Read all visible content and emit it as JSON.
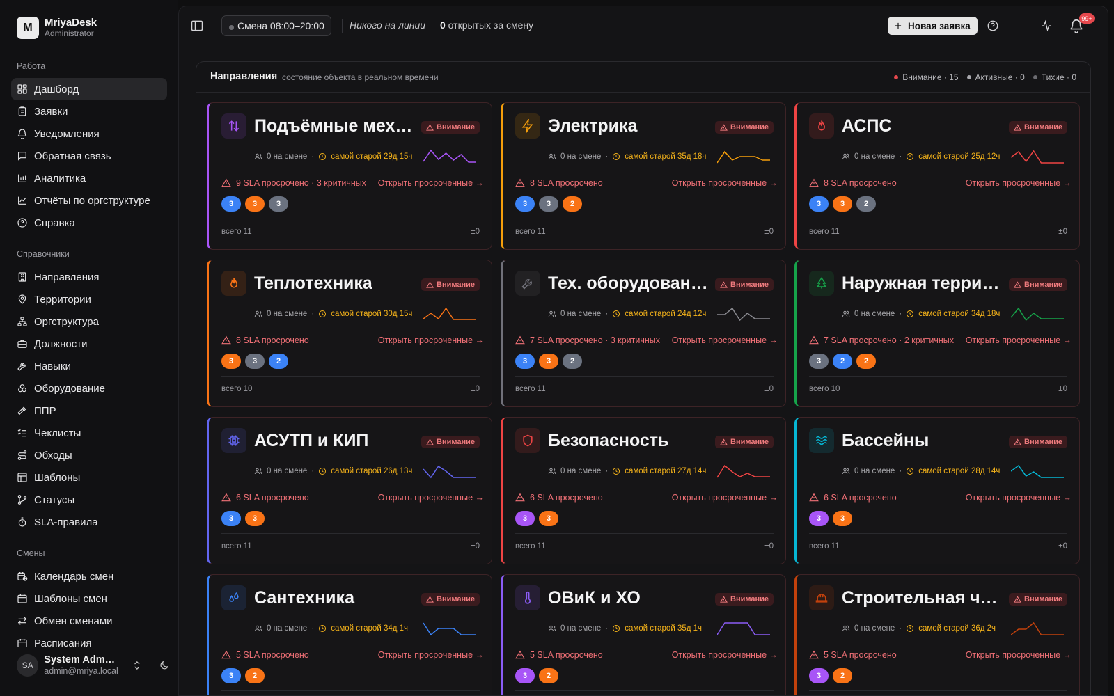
{
  "app": {
    "name": "MriyaDesk",
    "role": "Administrator",
    "logo_letter": "M"
  },
  "sidebar": {
    "groups": [
      {
        "label": "Работа",
        "items": [
          {
            "label": "Дашборд",
            "icon": "dashboard-icon",
            "active": true
          },
          {
            "label": "Заявки",
            "icon": "clipboard-icon"
          },
          {
            "label": "Уведомления",
            "icon": "bell-icon"
          },
          {
            "label": "Обратная связь",
            "icon": "message-icon"
          },
          {
            "label": "Аналитика",
            "icon": "bar-chart-icon"
          },
          {
            "label": "Отчёты по оргструктуре",
            "icon": "line-chart-icon"
          },
          {
            "label": "Справка",
            "icon": "help-circle-icon"
          }
        ]
      },
      {
        "label": "Справочники",
        "items": [
          {
            "label": "Направления",
            "icon": "building-icon"
          },
          {
            "label": "Территории",
            "icon": "map-pin-icon"
          },
          {
            "label": "Оргструктура",
            "icon": "network-icon"
          },
          {
            "label": "Должности",
            "icon": "briefcase-icon"
          },
          {
            "label": "Навыки",
            "icon": "wrench-icon"
          },
          {
            "label": "Оборудование",
            "icon": "boxes-icon"
          },
          {
            "label": "ППР",
            "icon": "hammer-icon"
          },
          {
            "label": "Чеклисты",
            "icon": "list-checks-icon"
          },
          {
            "label": "Обходы",
            "icon": "route-icon"
          },
          {
            "label": "Шаблоны",
            "icon": "template-icon"
          },
          {
            "label": "Статусы",
            "icon": "git-branch-icon"
          },
          {
            "label": "SLA-правила",
            "icon": "timer-icon"
          }
        ]
      },
      {
        "label": "Смены",
        "items": [
          {
            "label": "Календарь смен",
            "icon": "calendar-clock-icon"
          },
          {
            "label": "Шаблоны смен",
            "icon": "calendar-icon"
          },
          {
            "label": "Обмен сменами",
            "icon": "swap-icon"
          },
          {
            "label": "Расписания",
            "icon": "calendar-icon"
          }
        ]
      }
    ],
    "user": {
      "initials": "SA",
      "name": "System Administrator",
      "email": "admin@mriya.local"
    }
  },
  "topbar": {
    "shift": "Смена 08:00–20:00",
    "on_line": "Никого на линии",
    "open_count": "0",
    "open_text": " открытых за смену",
    "new_button": "Новая заявка",
    "notif_badge": "99+"
  },
  "panel": {
    "title": "Направления",
    "subtitle": "состояние объекта в реальном времени",
    "legend": [
      {
        "label": "Внимание · 15",
        "color": "#e5484d"
      },
      {
        "label": "Активные · 0",
        "color": "#a8a8ad"
      },
      {
        "label": "Тихие · 0",
        "color": "#6b6b70"
      }
    ]
  },
  "status_label": "Внимание",
  "open_overdue_label": "Открыть просроченные →",
  "cards": [
    {
      "title": "Подъёмные механизмы",
      "icon": "arrows-up-down-icon",
      "color": "#a855f7",
      "on_shift": "0 на смене",
      "oldest": "самой старой 29д 15ч",
      "sla": "9 SLA просрочено · 3 критичных",
      "chips": [
        {
          "v": "3",
          "c": "#3b82f6"
        },
        {
          "v": "3",
          "c": "#f97316"
        },
        {
          "v": "3",
          "c": "#6b7280"
        }
      ],
      "total": "всего 11",
      "delta": "±0",
      "spark": [
        0.2,
        1,
        0.35,
        0.8,
        0.3,
        0.7,
        0.15,
        0.15
      ]
    },
    {
      "title": "Электрика",
      "icon": "zap-icon",
      "color": "#f59e0b",
      "on_shift": "0 на смене",
      "oldest": "самой старой 35д 18ч",
      "sla": "8 SLA просрочено",
      "chips": [
        {
          "v": "3",
          "c": "#3b82f6"
        },
        {
          "v": "3",
          "c": "#6b7280"
        },
        {
          "v": "2",
          "c": "#f97316"
        }
      ],
      "total": "всего 11",
      "delta": "±0",
      "spark": [
        0.1,
        0.9,
        0.3,
        0.55,
        0.55,
        0.55,
        0.3,
        0.3
      ]
    },
    {
      "title": "АСПС",
      "icon": "flame-icon",
      "color": "#ef4444",
      "on_shift": "0 на смене",
      "oldest": "самой старой 25д 12ч",
      "sla": "8 SLA просрочено",
      "chips": [
        {
          "v": "3",
          "c": "#3b82f6"
        },
        {
          "v": "3",
          "c": "#f97316"
        },
        {
          "v": "2",
          "c": "#6b7280"
        }
      ],
      "total": "всего 11",
      "delta": "±0",
      "spark": [
        0.5,
        0.9,
        0.2,
        0.95,
        0.1,
        0.1,
        0.1,
        0.1
      ]
    },
    {
      "title": "Теплотехника",
      "icon": "flame-icon",
      "color": "#f97316",
      "on_shift": "0 на смене",
      "oldest": "самой старой 30д 15ч",
      "sla": "8 SLA просрочено",
      "chips": [
        {
          "v": "3",
          "c": "#f97316"
        },
        {
          "v": "3",
          "c": "#6b7280"
        },
        {
          "v": "2",
          "c": "#3b82f6"
        }
      ],
      "total": "всего 10",
      "delta": "±0",
      "spark": [
        0.2,
        0.6,
        0.2,
        0.95,
        0.15,
        0.15,
        0.15,
        0.15
      ]
    },
    {
      "title": "Тех. оборудование",
      "icon": "wrench-icon",
      "color": "#71717a",
      "on_shift": "0 на смене",
      "oldest": "самой старой 24д 12ч",
      "sla": "7 SLA просрочено · 3 критичных",
      "chips": [
        {
          "v": "3",
          "c": "#3b82f6"
        },
        {
          "v": "3",
          "c": "#f97316"
        },
        {
          "v": "2",
          "c": "#6b7280"
        }
      ],
      "total": "всего 11",
      "delta": "±0",
      "spark": [
        0.5,
        0.5,
        0.95,
        0.1,
        0.6,
        0.2,
        0.2,
        0.2
      ]
    },
    {
      "title": "Наружная территория",
      "icon": "tree-icon",
      "color": "#16a34a",
      "on_shift": "0 на смене",
      "oldest": "самой старой 34д 18ч",
      "sla": "7 SLA просрочено · 2 критичных",
      "chips": [
        {
          "v": "3",
          "c": "#6b7280"
        },
        {
          "v": "2",
          "c": "#3b82f6"
        },
        {
          "v": "2",
          "c": "#f97316"
        }
      ],
      "total": "всего 10",
      "delta": "±0",
      "spark": [
        0.3,
        0.95,
        0.1,
        0.6,
        0.2,
        0.2,
        0.2,
        0.2
      ]
    },
    {
      "title": "АСУТП и КИП",
      "icon": "cpu-icon",
      "color": "#6366f1",
      "on_shift": "0 на смене",
      "oldest": "самой старой 26д 13ч",
      "sla": "6 SLA просрочено",
      "chips": [
        {
          "v": "3",
          "c": "#3b82f6"
        },
        {
          "v": "3",
          "c": "#f97316"
        }
      ],
      "total": "всего 11",
      "delta": "±0",
      "spark": [
        0.7,
        0.1,
        0.9,
        0.55,
        0.1,
        0.1,
        0.1,
        0.1
      ]
    },
    {
      "title": "Безопасность",
      "icon": "shield-icon",
      "color": "#ef4444",
      "on_shift": "0 на смене",
      "oldest": "самой старой 27д 14ч",
      "sla": "6 SLA просрочено",
      "chips": [
        {
          "v": "3",
          "c": "#a855f7"
        },
        {
          "v": "3",
          "c": "#f97316"
        }
      ],
      "total": "всего 11",
      "delta": "±0",
      "spark": [
        0.1,
        0.95,
        0.5,
        0.15,
        0.4,
        0.15,
        0.15,
        0.15
      ]
    },
    {
      "title": "Бассейны",
      "icon": "waves-icon",
      "color": "#06b6d4",
      "on_shift": "0 на смене",
      "oldest": "самой старой 28д 14ч",
      "sla": "6 SLA просрочено",
      "chips": [
        {
          "v": "3",
          "c": "#a855f7"
        },
        {
          "v": "3",
          "c": "#f97316"
        }
      ],
      "total": "всего 11",
      "delta": "±0",
      "spark": [
        0.55,
        0.95,
        0.2,
        0.5,
        0.1,
        0.1,
        0.1,
        0.1
      ]
    },
    {
      "title": "Сантехника",
      "icon": "droplets-icon",
      "color": "#3b82f6",
      "on_shift": "0 на смене",
      "oldest": "самой старой 34д 1ч",
      "sla": "5 SLA просрочено",
      "chips": [
        {
          "v": "3",
          "c": "#3b82f6"
        },
        {
          "v": "2",
          "c": "#f97316"
        }
      ],
      "total": "",
      "delta": "",
      "spark": [
        0.95,
        0.1,
        0.55,
        0.55,
        0.55,
        0.1,
        0.1,
        0.1
      ]
    },
    {
      "title": "ОВиК и ХО",
      "icon": "thermometer-icon",
      "color": "#8b5cf6",
      "on_shift": "0 на смене",
      "oldest": "самой старой 35д 1ч",
      "sla": "5 SLA просрочено",
      "chips": [
        {
          "v": "3",
          "c": "#a855f7"
        },
        {
          "v": "2",
          "c": "#f97316"
        }
      ],
      "total": "",
      "delta": "",
      "spark": [
        0.1,
        0.95,
        0.95,
        0.95,
        0.95,
        0.1,
        0.1,
        0.1
      ]
    },
    {
      "title": "Строительная часть",
      "icon": "hard-hat-icon",
      "color": "#c2410c",
      "on_shift": "0 на смене",
      "oldest": "самой старой 36д 2ч",
      "sla": "5 SLA просрочено",
      "chips": [
        {
          "v": "3",
          "c": "#a855f7"
        },
        {
          "v": "2",
          "c": "#f97316"
        }
      ],
      "total": "",
      "delta": "",
      "spark": [
        0.1,
        0.5,
        0.5,
        0.95,
        0.1,
        0.1,
        0.1,
        0.1
      ]
    }
  ]
}
